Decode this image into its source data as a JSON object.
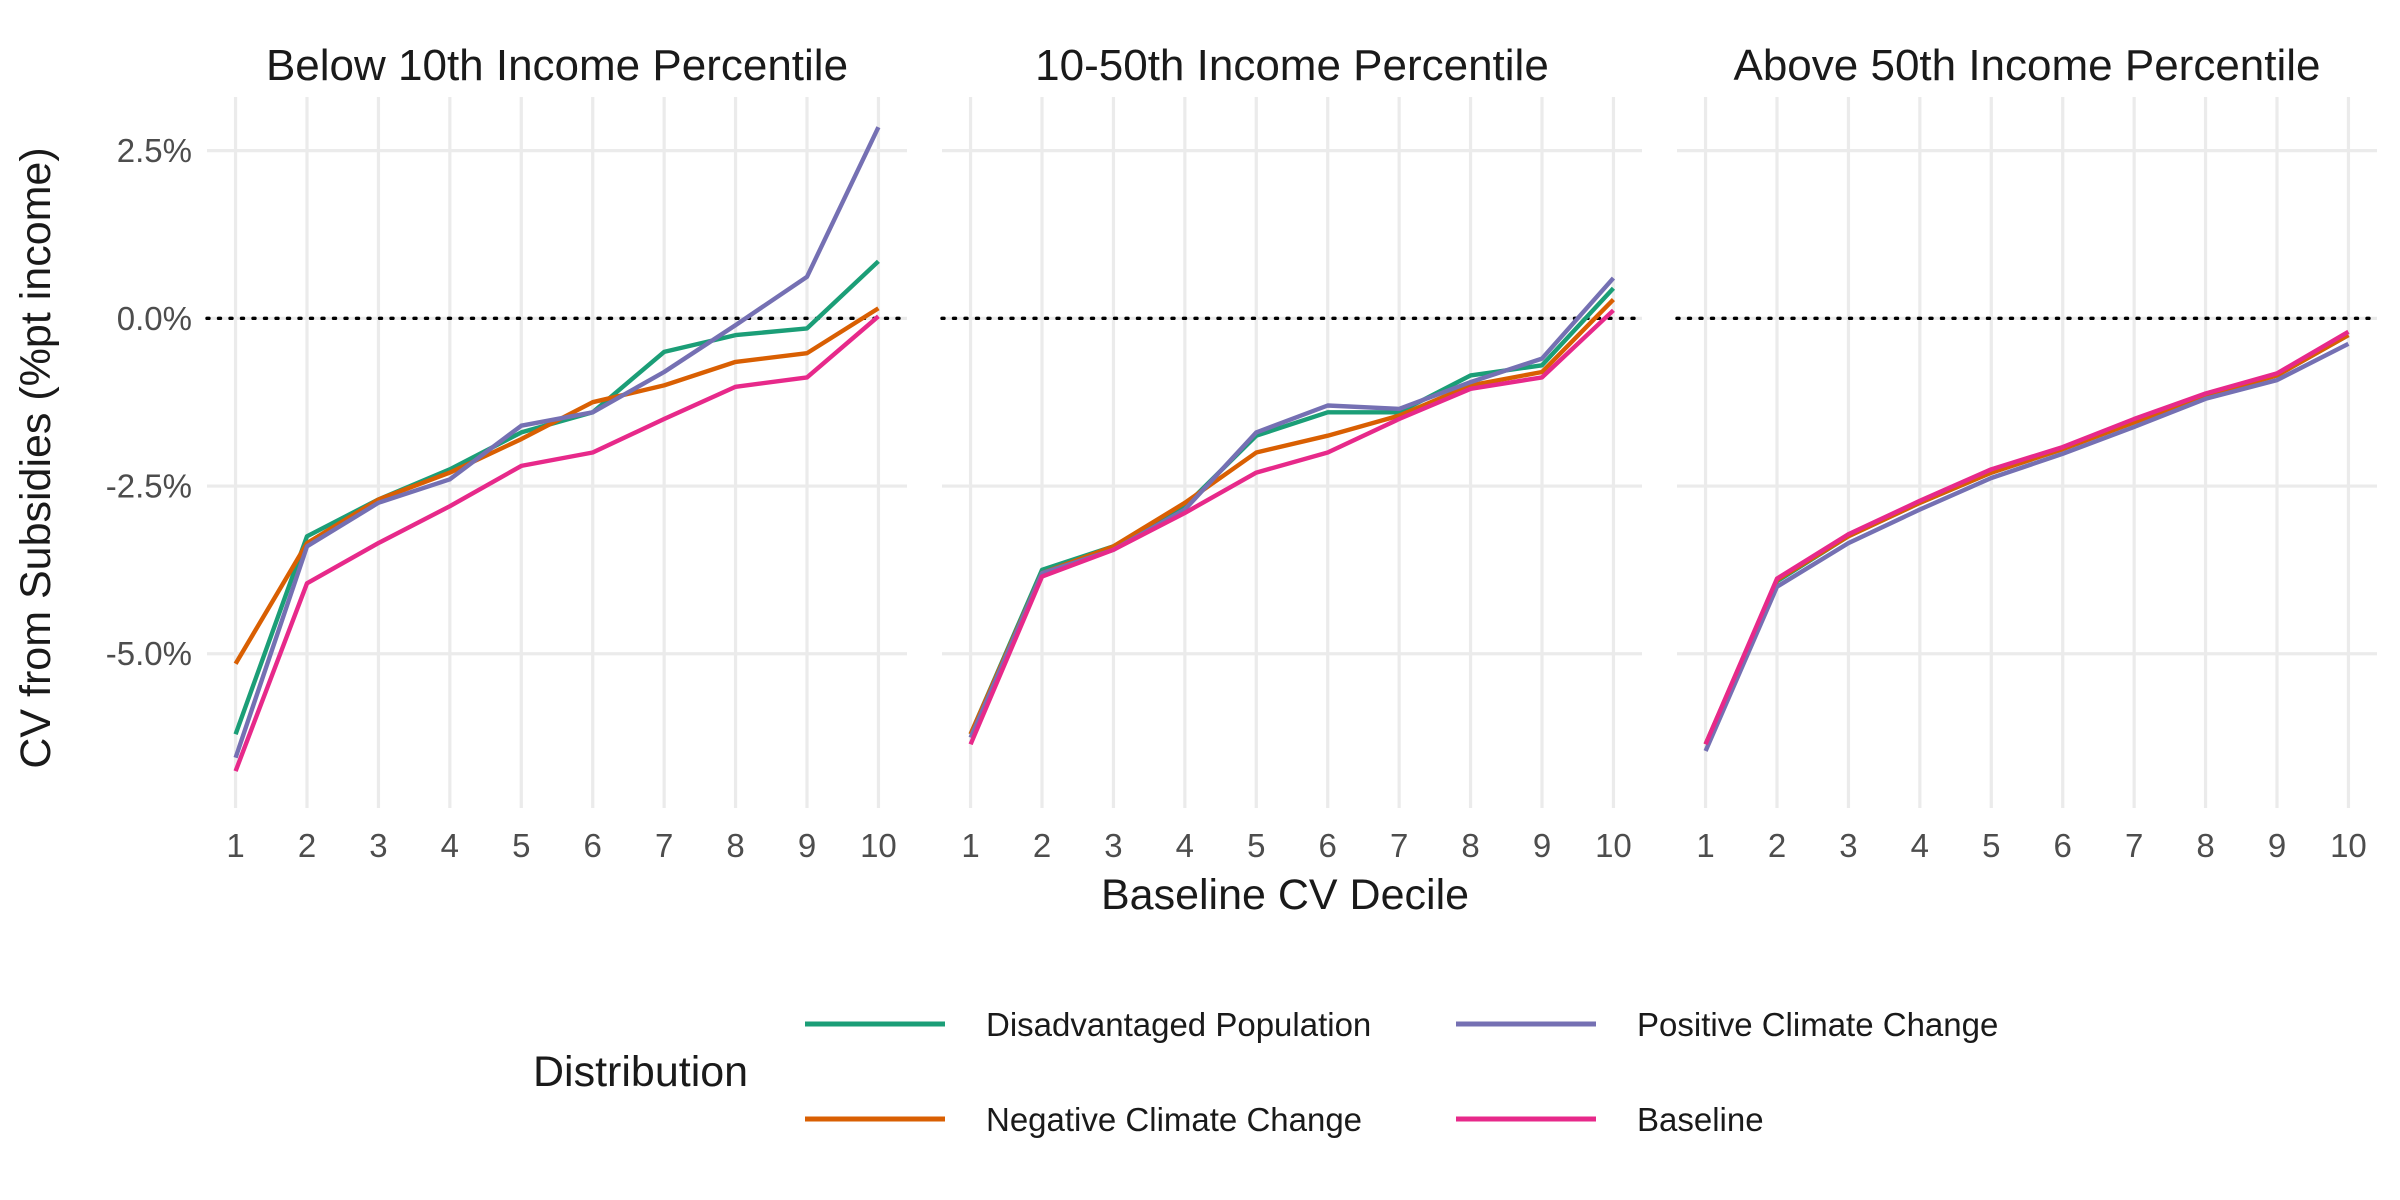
{
  "chart_data": {
    "type": "line",
    "ylabel": "CV from Subsidies (%pt income)",
    "xlabel": "Baseline CV Decile",
    "x": [
      1,
      2,
      3,
      4,
      5,
      6,
      7,
      8,
      9,
      10
    ],
    "x_tick_labels": [
      "1",
      "2",
      "3",
      "4",
      "5",
      "6",
      "7",
      "8",
      "9",
      "10"
    ],
    "xlim": [
      0.6,
      10.4
    ],
    "y_ticks": [
      2.5,
      0.0,
      -2.5,
      -5.0
    ],
    "y_tick_labels": [
      "2.5%",
      "0.0%",
      "-2.5%",
      "-5.0%"
    ],
    "ylim": [
      -7.3,
      3.3
    ],
    "reference_line": {
      "y": 0,
      "style": "dotted",
      "color": "#000000"
    },
    "grid": true,
    "legend": {
      "title": "Distribution",
      "position": "bottom",
      "entries": [
        {
          "label": "Disadvantaged Population",
          "color": "#1B9E77"
        },
        {
          "label": "Positive Climate Change",
          "color": "#7570B3"
        },
        {
          "label": "Negative Climate Change",
          "color": "#D95F02"
        },
        {
          "label": "Baseline",
          "color": "#E7298A"
        }
      ]
    },
    "panels": [
      {
        "title": "Below 10th Income Percentile",
        "series": [
          {
            "name": "Disadvantaged Population",
            "color": "#1B9E77",
            "values": [
              -6.2,
              -3.25,
              -2.7,
              -2.25,
              -1.7,
              -1.4,
              -0.5,
              -0.25,
              -0.15,
              0.85
            ]
          },
          {
            "name": "Negative Climate Change",
            "color": "#D95F02",
            "values": [
              -5.15,
              -3.35,
              -2.7,
              -2.3,
              -1.8,
              -1.25,
              -1.0,
              -0.65,
              -0.52,
              0.15
            ]
          },
          {
            "name": "Positive Climate Change",
            "color": "#7570B3",
            "values": [
              -6.55,
              -3.4,
              -2.75,
              -2.4,
              -1.6,
              -1.4,
              -0.8,
              -0.1,
              0.62,
              2.85
            ]
          },
          {
            "name": "Baseline",
            "color": "#E7298A",
            "values": [
              -6.75,
              -3.95,
              -3.35,
              -2.8,
              -2.2,
              -2.0,
              -1.5,
              -1.02,
              -0.88,
              0.03
            ]
          }
        ]
      },
      {
        "title": "10-50th Income Percentile",
        "series": [
          {
            "name": "Disadvantaged Population",
            "color": "#1B9E77",
            "values": [
              -6.2,
              -3.75,
              -3.4,
              -2.8,
              -1.75,
              -1.4,
              -1.4,
              -0.85,
              -0.7,
              0.45
            ]
          },
          {
            "name": "Negative Climate Change",
            "color": "#D95F02",
            "values": [
              -6.2,
              -3.8,
              -3.4,
              -2.75,
              -2.0,
              -1.75,
              -1.45,
              -1.0,
              -0.8,
              0.28
            ]
          },
          {
            "name": "Positive Climate Change",
            "color": "#7570B3",
            "values": [
              -6.25,
              -3.8,
              -3.45,
              -2.85,
              -1.7,
              -1.3,
              -1.35,
              -0.95,
              -0.6,
              0.6
            ]
          },
          {
            "name": "Baseline",
            "color": "#E7298A",
            "values": [
              -6.35,
              -3.85,
              -3.45,
              -2.9,
              -2.3,
              -2.0,
              -1.5,
              -1.05,
              -0.88,
              0.12
            ]
          }
        ]
      },
      {
        "title": "Above 50th Income Percentile",
        "series": [
          {
            "name": "Disadvantaged Population",
            "color": "#1B9E77",
            "values": [
              -6.35,
              -3.92,
              -3.25,
              -2.75,
              -2.3,
              -1.95,
              -1.55,
              -1.15,
              -0.85,
              -0.25
            ]
          },
          {
            "name": "Negative Climate Change",
            "color": "#D95F02",
            "values": [
              -6.35,
              -3.9,
              -3.25,
              -2.75,
              -2.3,
              -1.95,
              -1.55,
              -1.15,
              -0.85,
              -0.25
            ]
          },
          {
            "name": "Positive Climate Change",
            "color": "#7570B3",
            "values": [
              -6.45,
              -4.0,
              -3.35,
              -2.85,
              -2.38,
              -2.02,
              -1.62,
              -1.2,
              -0.92,
              -0.38
            ]
          },
          {
            "name": "Baseline",
            "color": "#E7298A",
            "values": [
              -6.35,
              -3.88,
              -3.22,
              -2.72,
              -2.25,
              -1.92,
              -1.5,
              -1.12,
              -0.82,
              -0.2
            ]
          }
        ]
      }
    ]
  }
}
